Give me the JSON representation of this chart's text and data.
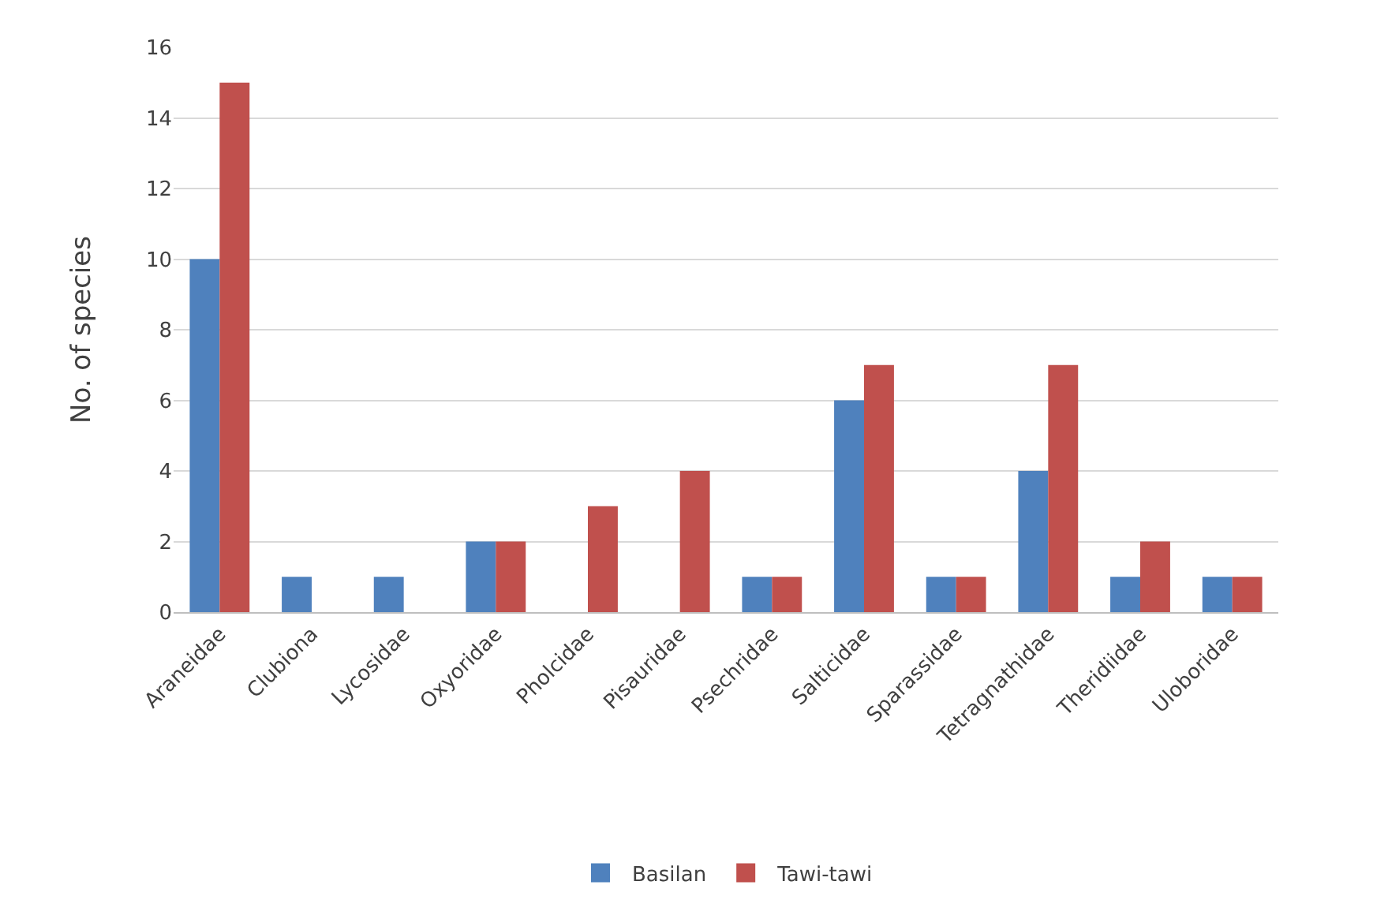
{
  "chart_data": {
    "type": "bar",
    "ylabel": "No. of species",
    "categories": [
      "Araneidae",
      "Clubiona",
      "Lycosidae",
      "Oxyoridae",
      "Pholcidae",
      "Pisauridae",
      "Psechridae",
      "Salticidae",
      "Sparassidae",
      "Tetragnathidae",
      "Theridiidae",
      "Uloboridae"
    ],
    "series": [
      {
        "name": "Basilan",
        "color": "#4f81bd",
        "values": [
          10,
          1,
          1,
          2,
          null,
          null,
          1,
          6,
          1,
          4,
          1,
          1
        ]
      },
      {
        "name": "Tawi-tawi",
        "color": "#c0504d",
        "values": [
          15,
          null,
          null,
          2,
          3,
          4,
          1,
          7,
          1,
          7,
          2,
          1
        ]
      }
    ],
    "ylim": [
      0,
      16
    ],
    "yticks": [
      0,
      2,
      4,
      6,
      8,
      10,
      12,
      14,
      16
    ],
    "grid": "y",
    "legend": "bottom"
  }
}
